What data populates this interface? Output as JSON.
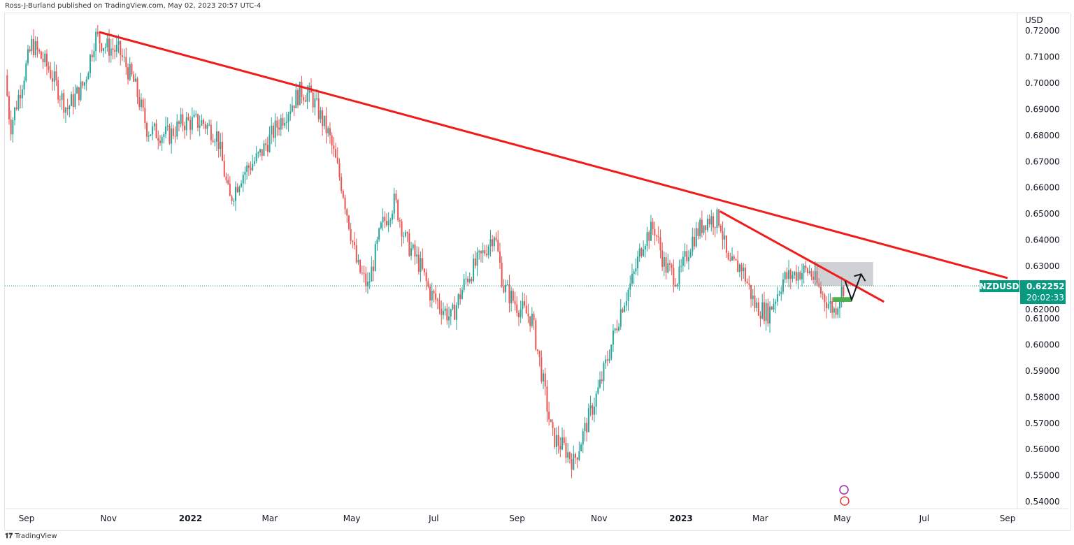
{
  "header": {
    "published": "Ross-J-Burland published on TradingView.com, May 02, 2023 20:57 UTC-4"
  },
  "footer": {
    "brand": "TradingView",
    "logo": "17"
  },
  "chart_data": {
    "type": "candlestick",
    "symbol": "NZDUSD",
    "currency": "USD",
    "last_price": "0.62252",
    "countdown": "20:02:33",
    "ylim": [
      0.54,
      0.72
    ],
    "y_ticks": [
      "0.72000",
      "0.71000",
      "0.70000",
      "0.69000",
      "0.68000",
      "0.67000",
      "0.66000",
      "0.65000",
      "0.64000",
      "0.63000",
      "0.62000",
      "0.61000",
      "0.60000",
      "0.59000",
      "0.58000",
      "0.57000",
      "0.56000",
      "0.55000",
      "0.54000"
    ],
    "x_ticks": [
      {
        "label": "Sep",
        "date": "2021-09-01",
        "bold": false
      },
      {
        "label": "Nov",
        "date": "2021-11-01",
        "bold": false
      },
      {
        "label": "2022",
        "date": "2022-01-01",
        "bold": true
      },
      {
        "label": "Mar",
        "date": "2022-03-01",
        "bold": false
      },
      {
        "label": "May",
        "date": "2022-05-01",
        "bold": false
      },
      {
        "label": "Jul",
        "date": "2022-07-01",
        "bold": false
      },
      {
        "label": "Sep",
        "date": "2022-09-01",
        "bold": false
      },
      {
        "label": "Nov",
        "date": "2022-11-01",
        "bold": false
      },
      {
        "label": "2023",
        "date": "2023-01-01",
        "bold": true
      },
      {
        "label": "Mar",
        "date": "2023-03-01",
        "bold": false
      },
      {
        "label": "May",
        "date": "2023-05-01",
        "bold": false
      },
      {
        "label": "Jul",
        "date": "2023-07-01",
        "bold": false
      },
      {
        "label": "Sep",
        "date": "2023-09-01",
        "bold": false
      }
    ],
    "xlim": [
      "2021-08-15",
      "2023-09-08"
    ],
    "approx_close_path": [
      [
        "2021-08-16",
        0.703
      ],
      [
        "2021-08-20",
        0.683
      ],
      [
        "2021-09-05",
        0.715
      ],
      [
        "2021-09-18",
        0.705
      ],
      [
        "2021-10-01",
        0.69
      ],
      [
        "2021-10-14",
        0.7
      ],
      [
        "2021-10-22",
        0.718
      ],
      [
        "2021-10-30",
        0.714
      ],
      [
        "2021-11-09",
        0.712
      ],
      [
        "2021-11-20",
        0.7
      ],
      [
        "2021-11-30",
        0.682
      ],
      [
        "2021-12-16",
        0.68
      ],
      [
        "2021-12-26",
        0.685
      ],
      [
        "2022-01-10",
        0.685
      ],
      [
        "2022-01-21",
        0.68
      ],
      [
        "2022-01-30",
        0.655
      ],
      [
        "2022-02-08",
        0.665
      ],
      [
        "2022-02-21",
        0.672
      ],
      [
        "2022-03-08",
        0.685
      ],
      [
        "2022-03-24",
        0.697
      ],
      [
        "2022-04-01",
        0.695
      ],
      [
        "2022-04-14",
        0.68
      ],
      [
        "2022-04-24",
        0.66
      ],
      [
        "2022-05-05",
        0.63
      ],
      [
        "2022-05-13",
        0.622
      ],
      [
        "2022-05-23",
        0.645
      ],
      [
        "2022-06-02",
        0.655
      ],
      [
        "2022-06-10",
        0.64
      ],
      [
        "2022-06-21",
        0.63
      ],
      [
        "2022-06-28",
        0.62
      ],
      [
        "2022-07-14",
        0.61
      ],
      [
        "2022-07-25",
        0.625
      ],
      [
        "2022-08-07",
        0.635
      ],
      [
        "2022-08-15",
        0.643
      ],
      [
        "2022-08-22",
        0.622
      ],
      [
        "2022-09-01",
        0.615
      ],
      [
        "2022-09-12",
        0.61
      ],
      [
        "2022-09-19",
        0.59
      ],
      [
        "2022-09-27",
        0.565
      ],
      [
        "2022-10-07",
        0.56
      ],
      [
        "2022-10-13",
        0.555
      ],
      [
        "2022-10-23",
        0.57
      ],
      [
        "2022-11-02",
        0.585
      ],
      [
        "2022-11-10",
        0.6
      ],
      [
        "2022-11-18",
        0.615
      ],
      [
        "2022-11-26",
        0.625
      ],
      [
        "2022-12-04",
        0.64
      ],
      [
        "2022-12-12",
        0.645
      ],
      [
        "2022-12-20",
        0.63
      ],
      [
        "2022-12-30",
        0.625
      ],
      [
        "2023-01-09",
        0.64
      ],
      [
        "2023-01-20",
        0.648
      ],
      [
        "2023-01-30",
        0.648
      ],
      [
        "2023-02-05",
        0.63
      ],
      [
        "2023-02-15",
        0.63
      ],
      [
        "2023-02-25",
        0.615
      ],
      [
        "2023-03-07",
        0.612
      ],
      [
        "2023-03-18",
        0.625
      ],
      [
        "2023-03-31",
        0.628
      ],
      [
        "2023-04-07",
        0.628
      ],
      [
        "2023-04-15",
        0.62
      ],
      [
        "2023-04-25",
        0.613
      ],
      [
        "2023-05-02",
        0.6225
      ]
    ],
    "colors": {
      "up": "#26a69a",
      "down": "#ef5350",
      "trend": "#f01c1c",
      "label_bg": "#089981"
    },
    "annotations": {
      "trendline_major": [
        [
          "2021-10-25",
          0.7195
        ],
        [
          "2023-09-01",
          0.6255
        ]
      ],
      "trendline_minor": [
        [
          "2023-01-30",
          0.651
        ],
        [
          "2023-06-01",
          0.6164
        ]
      ],
      "resistance_box": {
        "from": "2023-04-10",
        "to": "2023-05-24",
        "top": 0.6316,
        "bottom": 0.6225
      },
      "support_box": {
        "from": "2023-04-24",
        "to": "2023-05-08",
        "top": 0.6182,
        "bottom": 0.6164
      },
      "projection_path": [
        [
          "2023-05-03",
          0.6245
        ],
        [
          "2023-05-08",
          0.6172
        ],
        [
          "2023-05-15",
          0.627
        ]
      ]
    }
  }
}
